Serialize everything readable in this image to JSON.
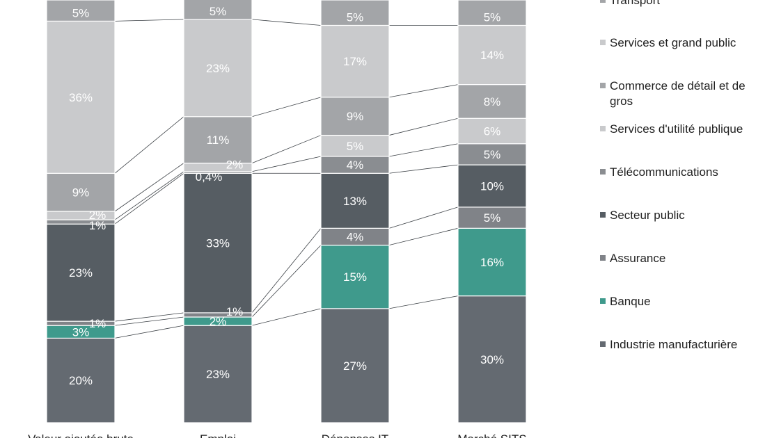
{
  "chart_data": {
    "type": "bar",
    "stacked": true,
    "percent_stacked": true,
    "categories": [
      "Valeur ajoutée brute",
      "Emploi",
      "Dépenses IT",
      "Marché SITS"
    ],
    "series": [
      {
        "name": "Industrie manufacturière",
        "color": "#646a71",
        "values": [
          20,
          23,
          27,
          30
        ],
        "labels": [
          "20%",
          "23%",
          "27%",
          "30%"
        ]
      },
      {
        "name": "Banque",
        "color": "#3f9a8c",
        "values": [
          3,
          2,
          15,
          16
        ],
        "labels": [
          "3%",
          "2%",
          "15%",
          "16%"
        ]
      },
      {
        "name": "Assurance",
        "color": "#808388",
        "values": [
          1,
          1,
          4,
          5
        ],
        "labels": [
          "1%",
          "1%",
          "4%",
          "5%"
        ]
      },
      {
        "name": "Secteur public",
        "color": "#565d63",
        "values": [
          23,
          33,
          13,
          10
        ],
        "labels": [
          "23%",
          "33%",
          "13%",
          "10%"
        ]
      },
      {
        "name": "Télécommunications",
        "color": "#8a8d91",
        "values": [
          1,
          0.4,
          4,
          5
        ],
        "labels": [
          "1%",
          "0,4%",
          "4%",
          "5%"
        ]
      },
      {
        "name": "Services d'utilité publique",
        "color": "#c9cacc",
        "values": [
          2,
          2,
          5,
          6
        ],
        "labels": [
          "2%",
          "2%",
          "5%",
          "6%"
        ]
      },
      {
        "name": "Commerce de détail et de gros",
        "color": "#a3a5a8",
        "values": [
          9,
          11,
          9,
          8
        ],
        "labels": [
          "9%",
          "11%",
          "9%",
          "8%"
        ]
      },
      {
        "name": "Services et grand public",
        "color": "#c9cacc",
        "values": [
          36,
          23,
          17,
          14
        ],
        "labels": [
          "36%",
          "23%",
          "17%",
          "14%"
        ]
      },
      {
        "name": "Transport",
        "color": "#a3a5a8",
        "values": [
          5,
          5,
          5,
          5
        ],
        "labels": [
          "5%",
          "5%",
          "5%",
          "5%"
        ]
      }
    ],
    "legend_placement": "right",
    "legend_order": [
      "Transport",
      "Services et grand public",
      "Commerce de détail et de gros",
      "Services d'utilité publique",
      "Télécommunications",
      "Secteur public",
      "Assurance",
      "Banque",
      "Industrie manufacturière"
    ],
    "grid": false
  }
}
